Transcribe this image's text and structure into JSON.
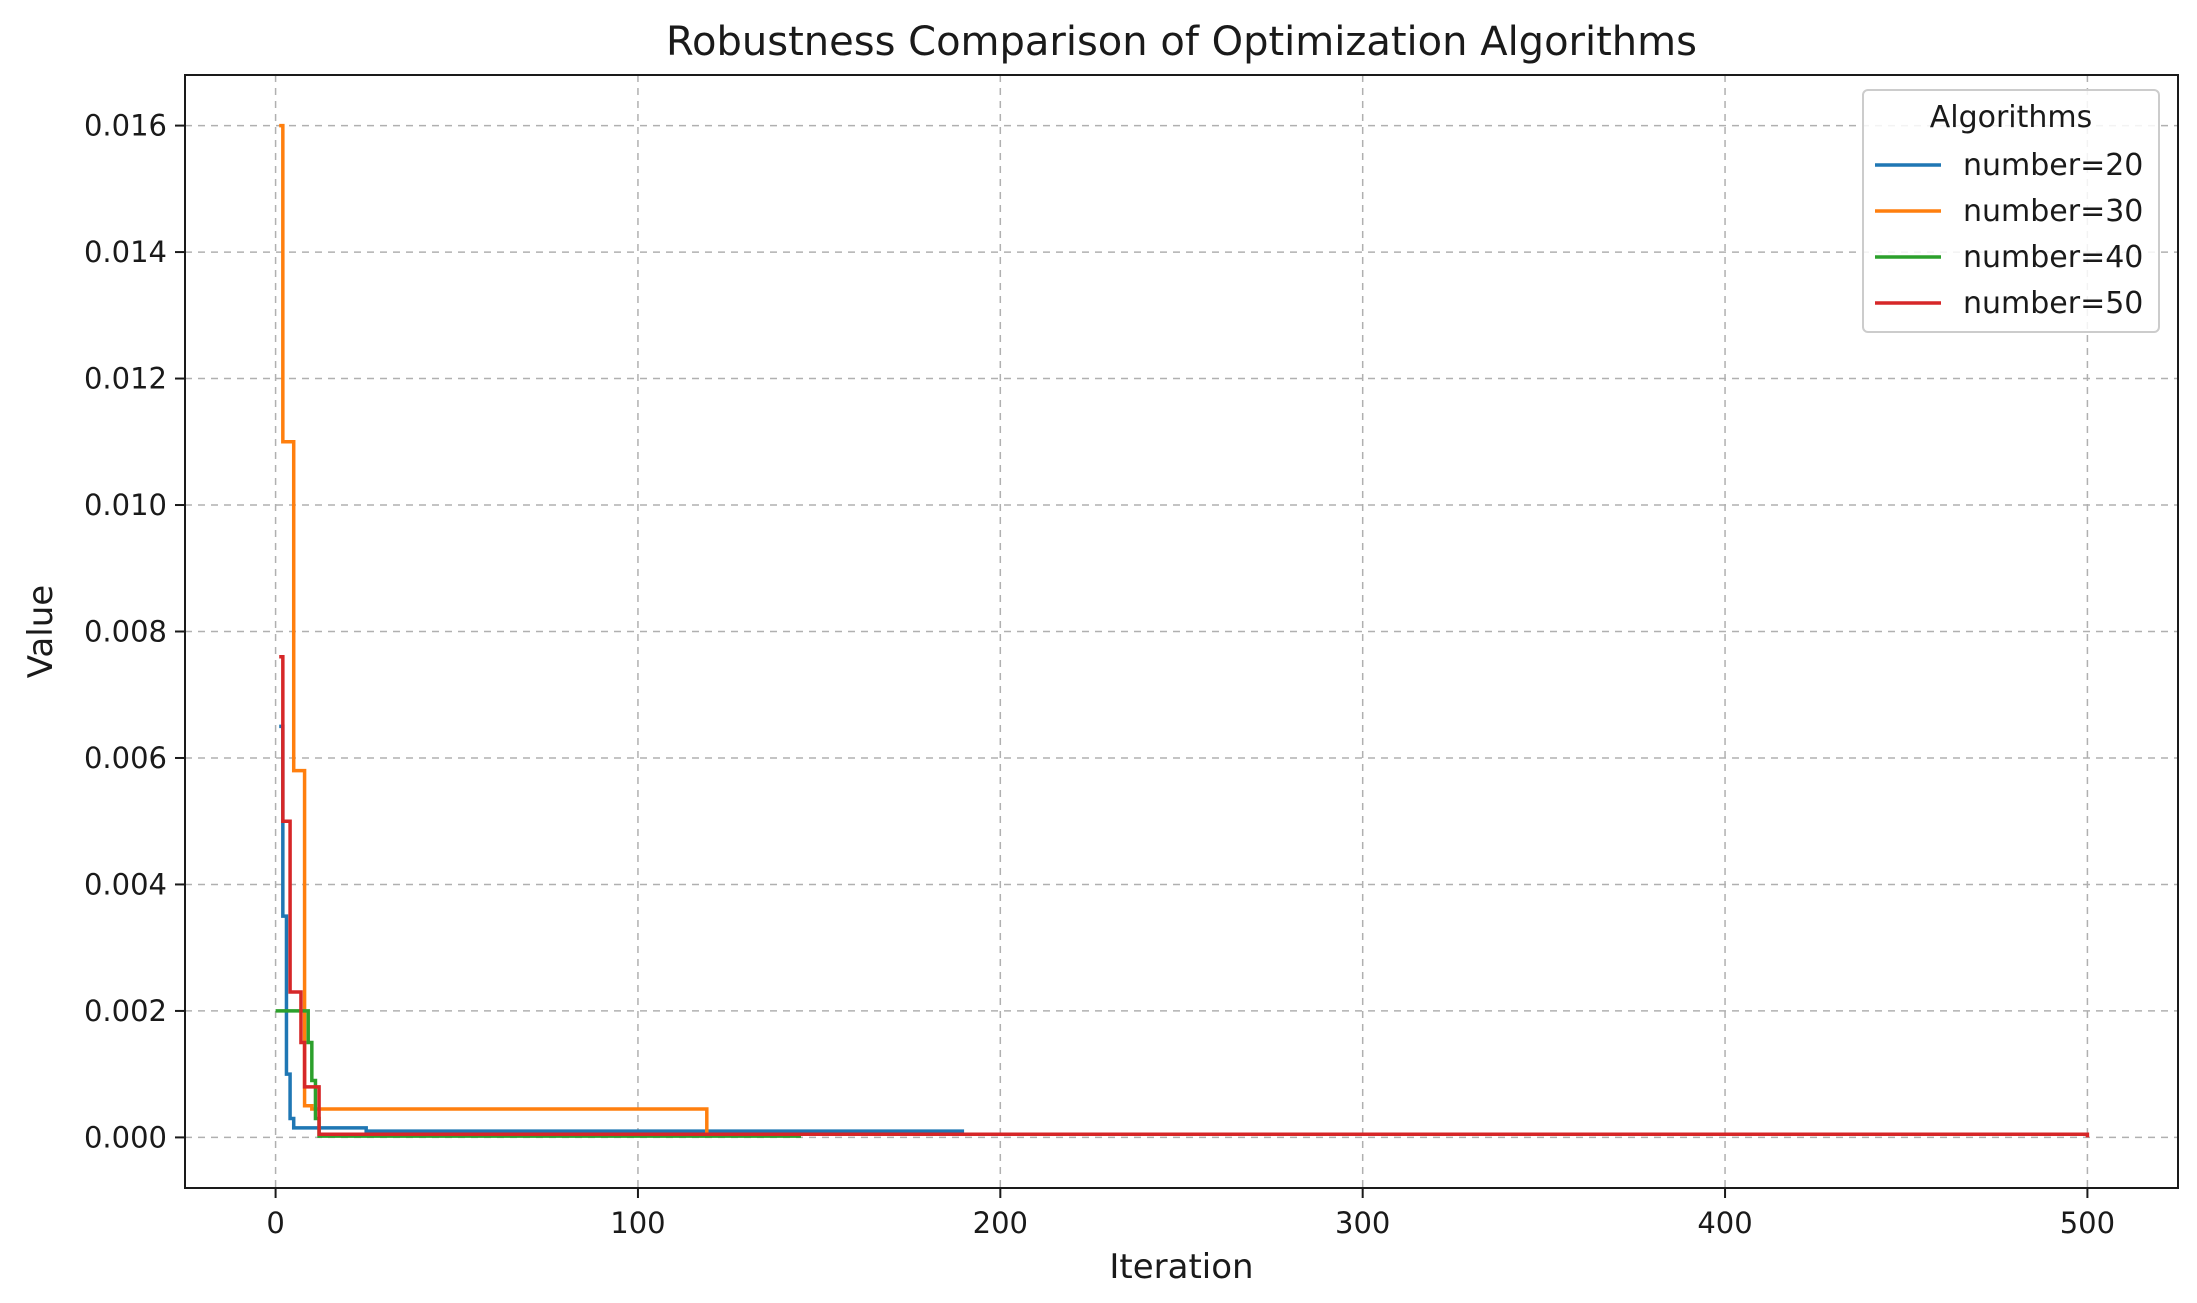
{
  "chart_data": {
    "type": "line",
    "title": "Robustness Comparison of Optimization Algorithms",
    "xlabel": "Iteration",
    "ylabel": "Value",
    "xlim": [
      -25,
      525
    ],
    "ylim": [
      -0.0008,
      0.0168
    ],
    "xticks": [
      0,
      100,
      200,
      300,
      400,
      500
    ],
    "xtick_labels": [
      "0",
      "100",
      "200",
      "300",
      "400",
      "500"
    ],
    "yticks": [
      0,
      0.002,
      0.004,
      0.006,
      0.008,
      0.01,
      0.012,
      0.014,
      0.016
    ],
    "ytick_labels": [
      "0.000",
      "0.002",
      "0.004",
      "0.006",
      "0.008",
      "0.010",
      "0.012",
      "0.014",
      "0.016"
    ],
    "grid": true,
    "grid_style": "dashed",
    "legend": {
      "title": "Algorithms",
      "position": "top-right"
    },
    "series": [
      {
        "name": "number=20",
        "color": "#1f77b4",
        "step": true,
        "x": [
          1,
          2,
          3,
          4,
          5,
          25,
          190
        ],
        "y": [
          0.0065,
          0.0035,
          0.001,
          0.0003,
          0.00015,
          0.0001,
          0.0001
        ]
      },
      {
        "name": "number=30",
        "color": "#ff7f0e",
        "step": true,
        "x": [
          1,
          2,
          4,
          5,
          7,
          8,
          10,
          118,
          119,
          295
        ],
        "y": [
          0.016,
          0.011,
          0.011,
          0.0058,
          0.0058,
          0.0005,
          0.00045,
          0.00045,
          5e-05,
          5e-05
        ]
      },
      {
        "name": "number=40",
        "color": "#2ca02c",
        "step": true,
        "x": [
          0,
          7,
          9,
          10,
          11,
          12,
          145
        ],
        "y": [
          0.002,
          0.002,
          0.0015,
          0.0009,
          0.0003,
          2e-05,
          2e-05
        ]
      },
      {
        "name": "number=50",
        "color": "#d62728",
        "step": true,
        "x": [
          1,
          2,
          4,
          6,
          7,
          8,
          10,
          12,
          500
        ],
        "y": [
          0.0076,
          0.005,
          0.0023,
          0.0023,
          0.0015,
          0.0008,
          0.0008,
          5e-05,
          0.0
        ]
      }
    ]
  }
}
